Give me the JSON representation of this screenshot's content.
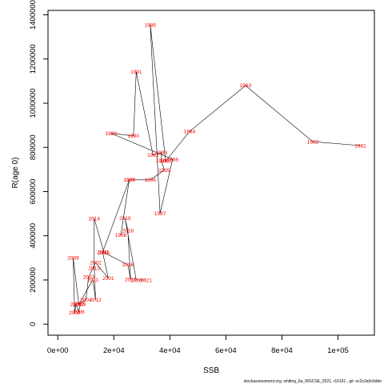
{
  "chart_data": {
    "type": "line",
    "xlabel": "SSB",
    "ylabel": "R(age 0)",
    "xlim": [
      -3500,
      113000
    ],
    "ylim": [
      -50000,
      1420000
    ],
    "x_ticks": [
      {
        "value": 0,
        "label": "0e+00"
      },
      {
        "value": 20000,
        "label": "2e+04"
      },
      {
        "value": 40000,
        "label": "4e+04"
      },
      {
        "value": 60000,
        "label": "6e+04"
      },
      {
        "value": 80000,
        "label": "8e+04"
      },
      {
        "value": 100000,
        "label": "1e+05"
      }
    ],
    "y_ticks": [
      {
        "value": 0,
        "label": "0"
      },
      {
        "value": 200000,
        "label": "200000"
      },
      {
        "value": 400000,
        "label": "400000"
      },
      {
        "value": 600000,
        "label": "600000"
      },
      {
        "value": 800000,
        "label": "800000"
      },
      {
        "value": 1000000,
        "label": "1000000"
      },
      {
        "value": 1200000,
        "label": "1200000"
      },
      {
        "value": 1400000,
        "label": "1400000"
      }
    ],
    "grid": false,
    "series": [
      {
        "points": [
          {
            "label": "1981",
            "x": 108000,
            "y": 808000
          },
          {
            "label": "1982",
            "x": 91000,
            "y": 826000
          },
          {
            "label": "1983",
            "x": 67000,
            "y": 1080000
          },
          {
            "label": "1984",
            "x": 47000,
            "y": 872000
          },
          {
            "label": "1985",
            "x": 38500,
            "y": 738000
          },
          {
            "label": "1986",
            "x": 33000,
            "y": 1355000
          },
          {
            "label": "1987",
            "x": 36500,
            "y": 502000
          },
          {
            "label": "1988",
            "x": 41000,
            "y": 746000
          },
          {
            "label": "1989",
            "x": 19000,
            "y": 864000
          },
          {
            "label": "1990",
            "x": 27000,
            "y": 852000
          },
          {
            "label": "1991",
            "x": 28000,
            "y": 1142000
          },
          {
            "label": "1992",
            "x": 34000,
            "y": 765000
          },
          {
            "label": "1993",
            "x": 37000,
            "y": 777000
          },
          {
            "label": "1994",
            "x": 37000,
            "y": 740000
          },
          {
            "label": "1995",
            "x": 38000,
            "y": 697000
          },
          {
            "label": "1996",
            "x": 33000,
            "y": 653000
          },
          {
            "label": "1997",
            "x": 25500,
            "y": 653000
          },
          {
            "label": "1998",
            "x": 22500,
            "y": 404000
          },
          {
            "label": "1999",
            "x": 25500,
            "y": 653000
          },
          {
            "label": "2000",
            "x": 16000,
            "y": 325000
          },
          {
            "label": "2001",
            "x": 18000,
            "y": 208000
          },
          {
            "label": "2002",
            "x": 13500,
            "y": 278000
          },
          {
            "label": "2003",
            "x": 11000,
            "y": 213000
          },
          {
            "label": "2004",
            "x": 10000,
            "y": 111000
          },
          {
            "label": "2005",
            "x": 8000,
            "y": 93000
          },
          {
            "label": "2006",
            "x": 7500,
            "y": 56000
          },
          {
            "label": "2007",
            "x": 6500,
            "y": 90000
          },
          {
            "label": "2008",
            "x": 6000,
            "y": 52000
          },
          {
            "label": "2009",
            "x": 5500,
            "y": 300000
          },
          {
            "label": "2010",
            "x": 7500,
            "y": 89000
          },
          {
            "label": "2011",
            "x": 12500,
            "y": 201000
          },
          {
            "label": "2012",
            "x": 13500,
            "y": 110000
          },
          {
            "label": "2013",
            "x": 13000,
            "y": 253000
          },
          {
            "label": "2014",
            "x": 13000,
            "y": 478000
          },
          {
            "label": "2015",
            "x": 16500,
            "y": 324000
          },
          {
            "label": "2016",
            "x": 25000,
            "y": 269000
          },
          {
            "label": "2017",
            "x": 26000,
            "y": 202000
          },
          {
            "label": "2018",
            "x": 25000,
            "y": 424000
          },
          {
            "label": "2019",
            "x": 24000,
            "y": 479000
          },
          {
            "label": "2020",
            "x": 28000,
            "y": 200000
          },
          {
            "label": "2021",
            "x": 31500,
            "y": 200000
          }
        ]
      }
    ],
    "annotations": [
      "stockassessment.org,  whiting_6a_WGCSE_2021,  r16191 ,  git:  ec2c2a0c6dde"
    ]
  }
}
